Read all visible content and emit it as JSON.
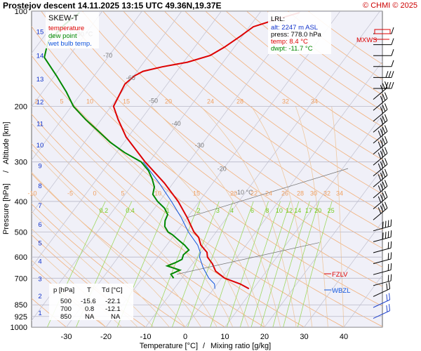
{
  "header": {
    "title": "Prostejov  descent  14.11.2025 13:15 UTC  49.36N,19.37E",
    "copyright": "© CHMI © 2025"
  },
  "legend": {
    "title": "SKEW-T",
    "items": [
      {
        "label": "temperature",
        "color": "#dd0000"
      },
      {
        "label": "dew point",
        "color": "#008800"
      },
      {
        "label": "wet bulb temp.",
        "color": "#1155dd"
      }
    ]
  },
  "lrl_box": {
    "title": "LRL:",
    "lines": [
      {
        "text": "alt: 2247 m ASL",
        "color": "#1133cc"
      },
      {
        "text": "press: 778.0 hPa",
        "color": "#000000"
      },
      {
        "text": "temp: 8.4 °C",
        "color": "#dd0000"
      },
      {
        "text": "dwpt: -11.7 °C",
        "color": "#008800"
      }
    ]
  },
  "table": {
    "headers": [
      "p [hPa]",
      "T",
      "Td [°C]"
    ],
    "rows": [
      [
        "500",
        "-15.6",
        "-22.1"
      ],
      [
        "700",
        "0.8",
        "-12.1"
      ],
      [
        "850",
        "NA",
        "NA"
      ]
    ]
  },
  "markers": {
    "mxws": "MXWS",
    "fzlv": "FZLV",
    "wbzl": "WBZL"
  },
  "axes": {
    "xlabel_temp": "Temperature [°C]",
    "xlabel_sep": "/",
    "xlabel_mix": "Mixing ratio [g/kg]",
    "ylabel_press": "Pressure [hPa]",
    "ylabel_sep": "/",
    "ylabel_alt": "Altitude [km]"
  },
  "chart_data": {
    "type": "line",
    "title": "SKEW-T",
    "xlabel": "Temperature [°C] / Mixing ratio [g/kg]",
    "ylabel": "Pressure [hPa] / Altitude [km]",
    "y_scale": "log",
    "xlim": [
      -35,
      45
    ],
    "ylim": [
      1000,
      100
    ],
    "pressure_ticks": [
      100,
      200,
      300,
      400,
      500,
      600,
      700,
      850,
      925,
      1000
    ],
    "temperature_ticks": [
      -30,
      -20,
      -10,
      0,
      10,
      20,
      30,
      40
    ],
    "altitude_ticks_km": [
      1,
      2,
      3,
      4,
      5,
      6,
      7,
      8,
      9,
      10,
      11,
      12,
      13,
      14,
      15,
      16
    ],
    "mixing_ratio_labels": [
      "0.2",
      "0.4",
      "1",
      "2",
      "3",
      "4",
      "6",
      "8",
      "10",
      "12",
      "14",
      "17",
      "20",
      "25"
    ],
    "mixing_ratio_values": [
      0.2,
      0.4,
      1,
      2,
      3,
      4,
      6,
      8,
      10,
      12,
      14,
      17,
      20,
      25
    ],
    "isotherm_labels": [
      "-80 °C",
      "-70",
      "-60",
      "-50",
      "-40",
      "-30",
      "-20",
      "-10 °C"
    ],
    "isotherm_label_values": [
      -80,
      -70,
      -60,
      -50,
      -40,
      -30,
      -20,
      -10
    ],
    "theta_labels_upper": [
      "2",
      "5",
      "10",
      "15",
      "20",
      "24",
      "28",
      "32",
      "34"
    ],
    "theta_labels_lower": [
      "-10",
      "-5",
      "0",
      "5",
      "10",
      "15",
      "20",
      "22",
      "24",
      "26",
      "28",
      "30",
      "32",
      "34"
    ],
    "series": [
      {
        "name": "temperature",
        "color": "#dd0000",
        "points": [
          {
            "p": 756,
            "t": 8.9
          },
          {
            "p": 730,
            "t": 5.8
          },
          {
            "p": 700,
            "t": 0.8
          },
          {
            "p": 665,
            "t": -2.8
          },
          {
            "p": 630,
            "t": -5.0
          },
          {
            "p": 600,
            "t": -7.5
          },
          {
            "p": 580,
            "t": -8.5
          },
          {
            "p": 550,
            "t": -11.4
          },
          {
            "p": 520,
            "t": -13.4
          },
          {
            "p": 500,
            "t": -15.6
          },
          {
            "p": 450,
            "t": -20.0
          },
          {
            "p": 400,
            "t": -25.3
          },
          {
            "p": 350,
            "t": -32.2
          },
          {
            "p": 300,
            "t": -41.0
          },
          {
            "p": 250,
            "t": -50.5
          },
          {
            "p": 220,
            "t": -55.8
          },
          {
            "p": 200,
            "t": -59.4
          },
          {
            "p": 170,
            "t": -60.7
          },
          {
            "p": 160,
            "t": -59.8
          },
          {
            "p": 155,
            "t": -58.5
          },
          {
            "p": 150,
            "t": -54.5
          },
          {
            "p": 145,
            "t": -49.0
          },
          {
            "p": 138,
            "t": -44.5
          },
          {
            "p": 130,
            "t": -42.5
          },
          {
            "p": 120,
            "t": -40.5
          },
          {
            "p": 112,
            "t": -39.0
          },
          {
            "p": 106,
            "t": -34.5
          },
          {
            "p": 101,
            "t": -30.0
          }
        ]
      },
      {
        "name": "dew point",
        "color": "#008800",
        "points": [
          {
            "p": 700,
            "t": -12.1
          },
          {
            "p": 680,
            "t": -13.5
          },
          {
            "p": 660,
            "t": -12.0
          },
          {
            "p": 640,
            "t": -16.0
          },
          {
            "p": 625,
            "t": -14.5
          },
          {
            "p": 610,
            "t": -13.5
          },
          {
            "p": 590,
            "t": -14.0
          },
          {
            "p": 570,
            "t": -13.5
          },
          {
            "p": 550,
            "t": -15.5
          },
          {
            "p": 530,
            "t": -18.0
          },
          {
            "p": 510,
            "t": -20.5
          },
          {
            "p": 500,
            "t": -22.1
          },
          {
            "p": 480,
            "t": -24.0
          },
          {
            "p": 460,
            "t": -25.0
          },
          {
            "p": 440,
            "t": -25.5
          },
          {
            "p": 420,
            "t": -27.5
          },
          {
            "p": 400,
            "t": -30.5
          },
          {
            "p": 380,
            "t": -33.0
          },
          {
            "p": 360,
            "t": -34.0
          },
          {
            "p": 340,
            "t": -36.0
          },
          {
            "p": 320,
            "t": -38.5
          },
          {
            "p": 300,
            "t": -42.0
          },
          {
            "p": 280,
            "t": -48.0
          },
          {
            "p": 260,
            "t": -53.5
          },
          {
            "p": 240,
            "t": -58.5
          },
          {
            "p": 220,
            "t": -64.0
          },
          {
            "p": 200,
            "t": -69.5
          },
          {
            "p": 180,
            "t": -74.0
          },
          {
            "p": 160,
            "t": -79.5
          },
          {
            "p": 140,
            "t": -86.0
          },
          {
            "p": 125,
            "t": -88.0
          },
          {
            "p": 110,
            "t": -87.0
          },
          {
            "p": 101,
            "t": -85.5
          }
        ]
      },
      {
        "name": "wet bulb temp.",
        "color": "#1155dd",
        "points": [
          {
            "p": 756,
            "t": 0.3
          },
          {
            "p": 730,
            "t": -0.7
          },
          {
            "p": 700,
            "t": -3.2
          },
          {
            "p": 650,
            "t": -6.5
          },
          {
            "p": 600,
            "t": -9.5
          },
          {
            "p": 580,
            "t": -10.2
          },
          {
            "p": 550,
            "t": -12.2
          },
          {
            "p": 500,
            "t": -17.0
          },
          {
            "p": 450,
            "t": -21.5
          },
          {
            "p": 400,
            "t": -27.0
          },
          {
            "p": 350,
            "t": -33.5
          },
          {
            "p": 300,
            "t": -41.5
          }
        ]
      }
    ],
    "wind_barbs_count": 27
  }
}
